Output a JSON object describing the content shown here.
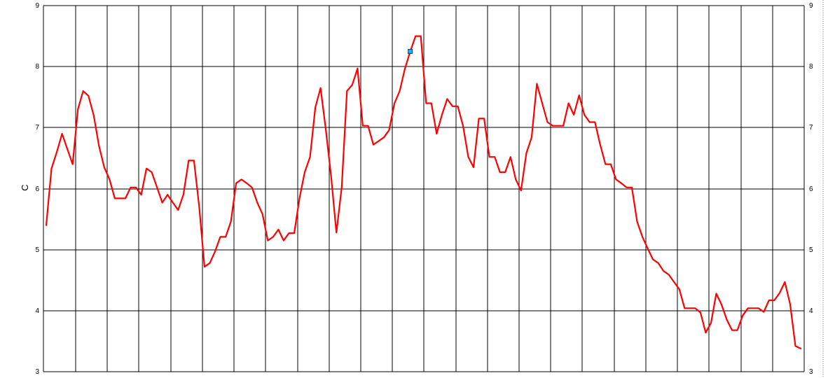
{
  "chart_data": {
    "type": "line",
    "ylabel": "C",
    "ylim": [
      3,
      9
    ],
    "yticks": [
      "3",
      "4",
      "5",
      "6",
      "7",
      "8",
      "9"
    ],
    "grid": true,
    "secondary_y_axis": true,
    "series": [
      {
        "color": "#ff0000",
        "values": [
          5.4,
          6.33,
          6.6,
          6.9,
          6.65,
          6.4,
          7.3,
          7.6,
          7.52,
          7.2,
          6.7,
          6.35,
          6.15,
          5.84,
          5.84,
          5.84,
          6.02,
          6.02,
          5.9,
          6.33,
          6.27,
          6.02,
          5.77,
          5.9,
          5.77,
          5.65,
          5.9,
          6.46,
          6.46,
          5.7,
          4.72,
          4.78,
          4.97,
          5.21,
          5.21,
          5.46,
          6.09,
          6.15,
          6.09,
          6.02,
          5.77,
          5.58,
          5.15,
          5.21,
          5.33,
          5.15,
          5.27,
          5.27,
          5.84,
          6.27,
          6.52,
          7.33,
          7.65,
          6.96,
          6.2,
          5.28,
          6.02,
          7.6,
          7.7,
          7.97,
          7.03,
          7.03,
          6.72,
          6.78,
          6.84,
          6.96,
          7.4,
          7.6,
          7.97,
          8.25,
          8.5,
          8.5,
          7.4,
          7.4,
          6.9,
          7.21,
          7.47,
          7.35,
          7.35,
          7.03,
          6.52,
          6.35,
          7.15,
          7.15,
          6.52,
          6.52,
          6.27,
          6.27,
          6.52,
          6.15,
          5.97,
          6.58,
          6.84,
          7.72,
          7.4,
          7.09,
          7.03,
          7.03,
          7.03,
          7.4,
          7.21,
          7.53,
          7.21,
          7.09,
          7.09,
          6.72,
          6.4,
          6.4,
          6.15,
          6.09,
          6.02,
          6.02,
          5.46,
          5.21,
          5.02,
          4.84,
          4.78,
          4.65,
          4.59,
          4.47,
          4.35,
          4.04,
          4.04,
          4.04,
          3.97,
          3.64,
          3.8,
          4.28,
          4.1,
          3.85,
          3.68,
          3.68,
          3.92,
          4.04,
          4.04,
          4.04,
          3.98,
          4.17,
          4.17,
          4.29,
          4.47,
          4.11,
          3.42,
          3.38
        ]
      }
    ],
    "highlight_marker": {
      "index": 69,
      "color": "#00c0e0"
    }
  }
}
